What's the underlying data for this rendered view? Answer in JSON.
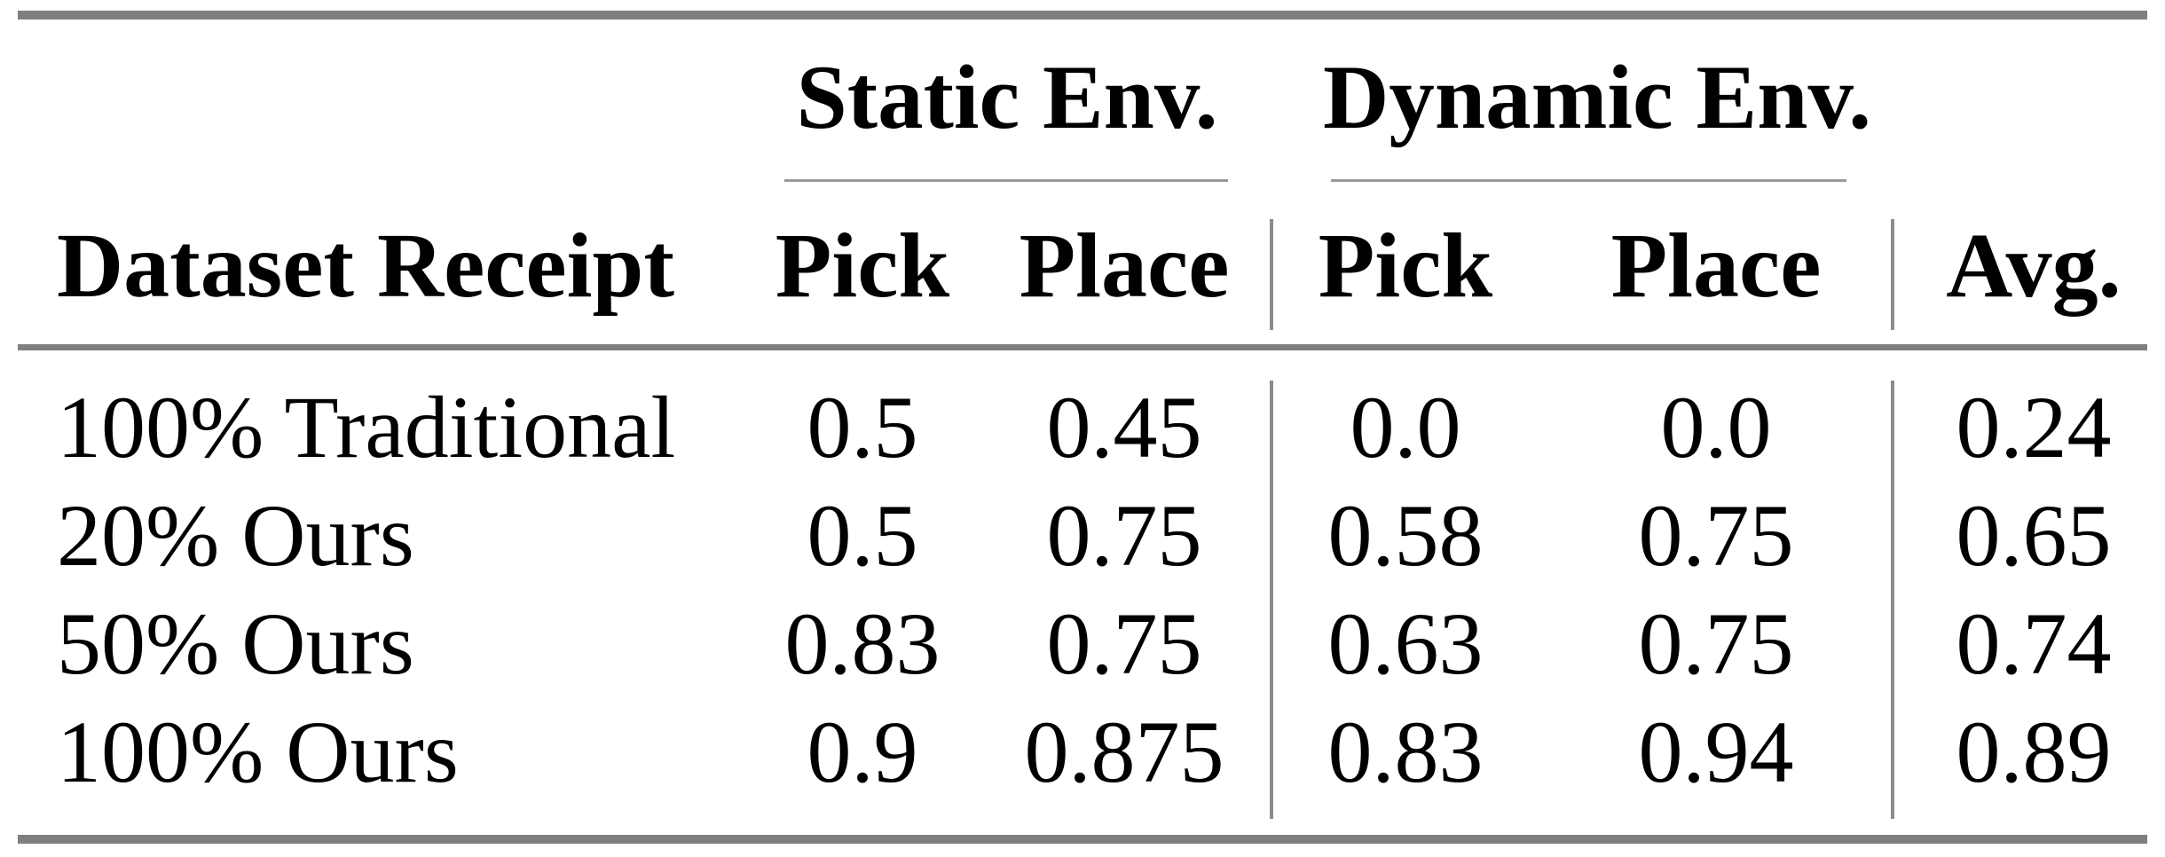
{
  "table": {
    "group_headers": [
      "Static Env.",
      "Dynamic Env."
    ],
    "column_headers": {
      "dataset": "Dataset Receipt",
      "static_pick": "Pick",
      "static_place": "Place",
      "dynamic_pick": "Pick",
      "dynamic_place": "Place",
      "avg": "Avg."
    },
    "rows": [
      {
        "label": "100% Traditional",
        "static_pick": "0.5",
        "static_place": "0.45",
        "dynamic_pick": "0.0",
        "dynamic_place": "0.0",
        "avg": "0.24"
      },
      {
        "label": "20% Ours",
        "static_pick": "0.5",
        "static_place": "0.75",
        "dynamic_pick": "0.58",
        "dynamic_place": "0.75",
        "avg": "0.65"
      },
      {
        "label": "50% Ours",
        "static_pick": "0.83",
        "static_place": "0.75",
        "dynamic_pick": "0.63",
        "dynamic_place": "0.75",
        "avg": "0.74"
      },
      {
        "label": "100% Ours",
        "static_pick": "0.9",
        "static_place": "0.875",
        "dynamic_pick": "0.83",
        "dynamic_place": "0.94",
        "avg": "0.89"
      }
    ]
  },
  "colors": {
    "background": "#ffffff",
    "text": "#000000",
    "rule_thick": "#7f7f7f",
    "rule_thin": "#999999",
    "rule_vertical": "#8c8c8c"
  }
}
